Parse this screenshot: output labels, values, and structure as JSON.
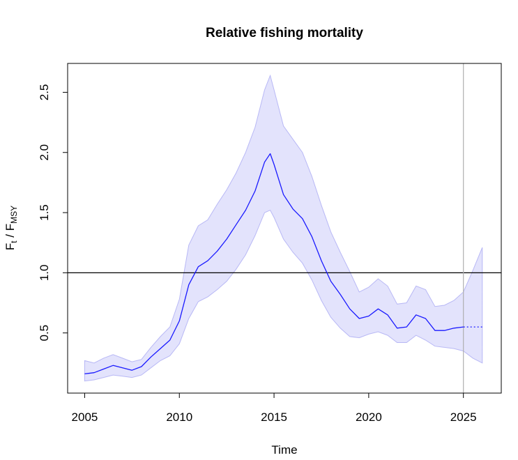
{
  "chart_data": {
    "type": "line",
    "title": "Relative fishing mortality",
    "xlabel": "Time",
    "ylabel": {
      "base1": "F",
      "sub1": "t",
      "sep": " / ",
      "base2": "F",
      "sub2": "MSY"
    },
    "xlim": [
      2004.1,
      2027.0
    ],
    "ylim": [
      0.0,
      2.74
    ],
    "xticks": [
      2005,
      2010,
      2015,
      2020,
      2025
    ],
    "xtick_labels": [
      "2005",
      "2010",
      "2015",
      "2020",
      "2025"
    ],
    "yticks": [
      0.5,
      1.0,
      1.5,
      2.0,
      2.5
    ],
    "ytick_labels": [
      "0.5",
      "1.0",
      "1.5",
      "2.0",
      "2.5"
    ],
    "reference_line_y": 1.0,
    "vertical_line_x": 2025,
    "forecast_start": 2025,
    "colors": {
      "line": "#1a1aff",
      "band": "#e3e3fc",
      "band_edge": "#b8b8f5",
      "ref": "#000000",
      "vline": "#b0b0b0"
    },
    "series": [
      {
        "x": [
          2005.0,
          2005.5,
          2006.0,
          2006.5,
          2007.0,
          2007.5,
          2008.0,
          2008.5,
          2009.0,
          2009.5,
          2010.0,
          2010.5,
          2011.0,
          2011.5,
          2012.0,
          2012.5,
          2013.0,
          2013.5,
          2014.0,
          2014.5,
          2014.8,
          2015.0,
          2015.5,
          2016.0,
          2016.5,
          2017.0,
          2017.5,
          2018.0,
          2018.5,
          2019.0,
          2019.5,
          2020.0,
          2020.5,
          2021.0,
          2021.5,
          2022.0,
          2022.5,
          2023.0,
          2023.5,
          2024.0,
          2024.5,
          2025.0,
          2025.5,
          2026.0
        ],
        "value": [
          0.16,
          0.17,
          0.2,
          0.23,
          0.21,
          0.19,
          0.22,
          0.3,
          0.37,
          0.44,
          0.6,
          0.9,
          1.05,
          1.1,
          1.18,
          1.28,
          1.4,
          1.52,
          1.68,
          1.92,
          1.99,
          1.9,
          1.65,
          1.53,
          1.45,
          1.3,
          1.1,
          0.93,
          0.82,
          0.7,
          0.62,
          0.64,
          0.7,
          0.65,
          0.54,
          0.55,
          0.65,
          0.62,
          0.52,
          0.52,
          0.54,
          0.55,
          0.55,
          0.55
        ],
        "lower": [
          0.1,
          0.11,
          0.13,
          0.15,
          0.14,
          0.13,
          0.15,
          0.21,
          0.27,
          0.31,
          0.41,
          0.62,
          0.76,
          0.8,
          0.86,
          0.93,
          1.03,
          1.15,
          1.31,
          1.5,
          1.52,
          1.46,
          1.28,
          1.17,
          1.08,
          0.94,
          0.77,
          0.63,
          0.54,
          0.47,
          0.46,
          0.49,
          0.51,
          0.48,
          0.42,
          0.42,
          0.48,
          0.44,
          0.39,
          0.38,
          0.37,
          0.35,
          0.29,
          0.25
        ],
        "upper": [
          0.27,
          0.25,
          0.29,
          0.32,
          0.29,
          0.26,
          0.28,
          0.38,
          0.47,
          0.55,
          0.78,
          1.23,
          1.39,
          1.44,
          1.57,
          1.69,
          1.83,
          2.0,
          2.21,
          2.52,
          2.64,
          2.52,
          2.22,
          2.11,
          2.0,
          1.8,
          1.56,
          1.34,
          1.17,
          1.01,
          0.84,
          0.88,
          0.95,
          0.89,
          0.74,
          0.75,
          0.89,
          0.86,
          0.72,
          0.73,
          0.77,
          0.84,
          1.02,
          1.21
        ]
      }
    ]
  }
}
